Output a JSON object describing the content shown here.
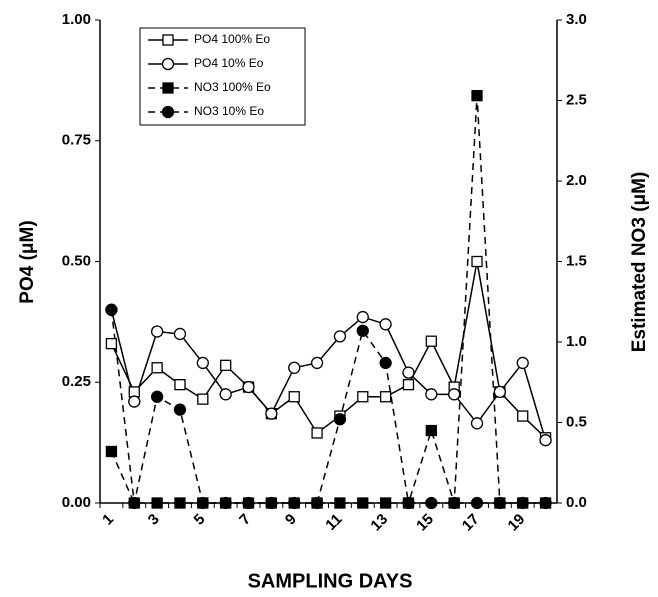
{
  "chart_data": {
    "type": "line",
    "xlabel": "SAMPLING DAYS",
    "ylabel": "PO4 (μM)",
    "y2label": "Estimated NO3 (μM)",
    "categories": [
      "1",
      null,
      "3",
      null,
      "5",
      null,
      "7",
      null,
      "9",
      null,
      "11",
      null,
      "13",
      null,
      "15",
      null,
      "17",
      null,
      "19",
      null
    ],
    "ylim": [
      0,
      1
    ],
    "yticks": [
      {
        "value": 0,
        "label": "0.00"
      },
      {
        "value": 0.25,
        "label": "0.25"
      },
      {
        "value": 0.5,
        "label": "0.50"
      },
      {
        "value": 0.75,
        "label": "0.75"
      },
      {
        "value": 1,
        "label": "1.00"
      }
    ],
    "y2lim": [
      0,
      3
    ],
    "y2ticks": [
      {
        "value": 0,
        "label": "0.0"
      },
      0.5,
      {
        "value": 1,
        "label": "1.0"
      },
      1.5,
      {
        "value": 2,
        "label": "2.0"
      },
      2.5,
      {
        "value": 3,
        "label": "3.0"
      }
    ],
    "legend": "upper left",
    "series": [
      {
        "name": "PO4 100% Eo",
        "color": "#000000",
        "marker": "square",
        "filled": false,
        "dashed": false,
        "values": [
          0.33,
          0.23,
          0.28,
          0.245,
          0.215,
          0.285,
          0.24,
          0.185,
          0.22,
          0.145,
          0.18,
          0.22,
          0.22,
          0.245,
          0.335,
          0.24,
          0.5,
          0.23,
          0.18,
          0.135
        ]
      },
      {
        "name": "PO4 10% Eo",
        "color": "#000000",
        "marker": "circle",
        "filled": false,
        "dashed": false,
        "values": [
          0.4,
          0.21,
          0.355,
          0.35,
          0.29,
          0.225,
          0.24,
          0.185,
          0.28,
          0.29,
          0.345,
          0.385,
          0.37,
          0.27,
          0.225,
          0.225,
          0.165,
          0.23,
          0.29,
          0.13
        ]
      },
      {
        "name": "NO3 100% Eo",
        "color": "#000000",
        "marker": "square",
        "filled": true,
        "dashed": true,
        "axis": "y2",
        "values": [
          0.32,
          0,
          0,
          0,
          0,
          0,
          0,
          0,
          0,
          0,
          0,
          0,
          0,
          0,
          0.45,
          0,
          2.53,
          0,
          0,
          0
        ]
      },
      {
        "name": "NO3 10% Eo",
        "color": "#000000",
        "marker": "circle",
        "filled": true,
        "dashed": true,
        "axis": "y2",
        "values": [
          1.2,
          0,
          0.66,
          0.58,
          0,
          0,
          0,
          0,
          0,
          0,
          0.52,
          1.07,
          0.87,
          0,
          0,
          0,
          0,
          0,
          0,
          0
        ]
      }
    ]
  }
}
